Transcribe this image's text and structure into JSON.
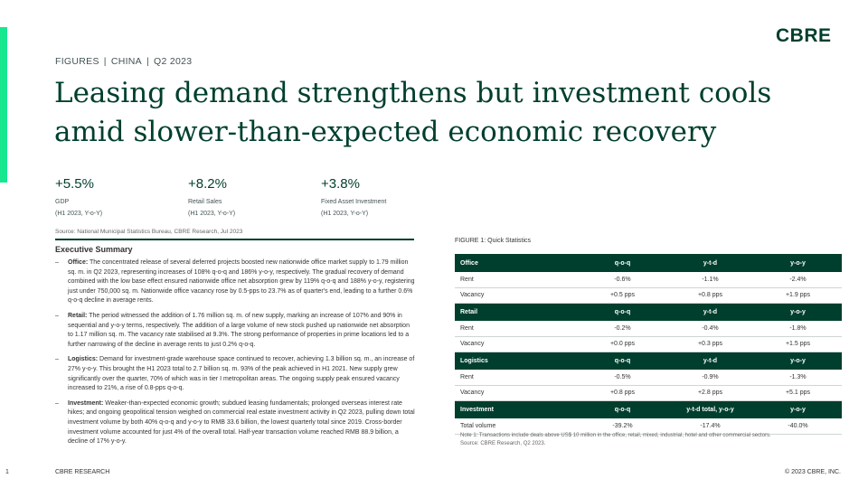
{
  "brand": {
    "logo_text": "CBRE",
    "accent_color": "#17e88f",
    "primary_color": "#003f2d"
  },
  "breadcrumb": [
    "FIGURES",
    "CHINA",
    "Q2 2023"
  ],
  "headline": {
    "line1": "Leasing demand strengthens but investment cools",
    "line2": "amid slower-than-expected economic recovery"
  },
  "kpis": [
    {
      "value": "+5.5%",
      "label": "GDP",
      "sub": "(H1 2023, Y-o-Y)"
    },
    {
      "value": "+8.2%",
      "label": "Retail Sales",
      "sub": "(H1 2023, Y-o-Y)"
    },
    {
      "value": "+3.8%",
      "label": "Fixed Asset Investment",
      "sub": "(H1 2023, Y-o-Y)"
    }
  ],
  "source_top": "Source: National Municipal Statistics Bureau, CBRE Research, Jul 2023",
  "executive_summary": {
    "title": "Executive Summary",
    "bullets": [
      {
        "head": "Office:",
        "text": "The concentrated release of several deferred projects boosted new nationwide office market supply to 1.79 million sq. m. in Q2 2023, representing increases of 108% q-o-q and 186% y-o-y, respectively. The gradual recovery of demand combined with the low base effect ensured nationwide office net absorption grew by 119% q-o-q and 188% y-o-y, registering just under 750,000 sq. m. Nationwide office vacancy rose by 0.5-pps to 23.7% as of quarter's end, leading to a further 0.6% q-o-q decline in average rents."
      },
      {
        "head": "Retail:",
        "text": "The period witnessed the addition of 1.76 million sq. m. of new supply, marking an increase of 107% and 90% in sequential and y-o-y terms, respectively. The addition of a large volume of new stock pushed up nationwide net absorption to 1.17 million sq. m. The vacancy rate stabilised at 9.3%. The strong performance of properties in prime locations led to a further narrowing of the decline in average rents to just 0.2% q-o-q."
      },
      {
        "head": "Logistics:",
        "text": "Demand for investment-grade warehouse space continued to recover, achieving 1.3 billion sq. m., an increase of 27% y-o-y. This brought the H1 2023 total to 2.7 billion sq. m. 93% of the peak achieved in H1 2021. New supply grew significantly over the quarter, 70% of which was in tier I metropolitan areas. The ongoing supply peak ensured vacancy increased to 21%, a rise of 0.8-pps q-o-q."
      },
      {
        "head": "Investment:",
        "text": "Weaker-than-expected economic growth; subdued leasing fundamentals; prolonged overseas interest rate hikes; and ongoing geopolitical tension weighed on commercial real estate investment activity in Q2 2023, pulling down total investment volume by both 40% q-o-q and y-o-y to RMB 33.6 billion, the lowest quarterly total since 2019. Cross-border investment volume accounted for just 4% of the overall total. Half-year transaction volume reached RMB 88.9 billion, a decline of 17% y-o-y."
      }
    ]
  },
  "figure": {
    "title": "FIGURE 1:  Quick Statistics",
    "sections": [
      {
        "name": "Office",
        "cols": [
          "q-o-q",
          "y-t-d",
          "y-o-y"
        ],
        "rows": [
          {
            "label": "Rent",
            "values": [
              "-0.6%",
              "-1.1%",
              "-2.4%"
            ]
          },
          {
            "label": "Vacancy",
            "values": [
              "+0.5 pps",
              "+0.8 pps",
              "+1.9 pps"
            ]
          }
        ]
      },
      {
        "name": "Retail",
        "cols": [
          "q-o-q",
          "y-t-d",
          "y-o-y"
        ],
        "rows": [
          {
            "label": "Rent",
            "values": [
              "-0.2%",
              "-0.4%",
              "-1.8%"
            ]
          },
          {
            "label": "Vacancy",
            "values": [
              "+0.0 pps",
              "+0.3 pps",
              "+1.5 pps"
            ]
          }
        ]
      },
      {
        "name": "Logistics",
        "cols": [
          "q-o-q",
          "y-t-d",
          "y-o-y"
        ],
        "rows": [
          {
            "label": "Rent",
            "values": [
              "-0.5%",
              "-0.9%",
              "-1.3%"
            ]
          },
          {
            "label": "Vacancy",
            "values": [
              "+0.8 pps",
              "+2.8 pps",
              "+5.1 pps"
            ]
          }
        ]
      },
      {
        "name": "Investment",
        "cols": [
          "q-o-q",
          "y-t-d total, y-o-y",
          "y-o-y"
        ],
        "rows": [
          {
            "label": "Total volume",
            "values": [
              "-39.2%",
              "-17.4%",
              "-40.0%"
            ]
          }
        ]
      }
    ],
    "note": "Note 1: Transactions include deals above US$ 10 million in the office, retail, mixed, industrial, hotel and other commercial sectors.",
    "source": "Source: CBRE Research, Q2 2023."
  },
  "footer": {
    "page": "1",
    "left": "CBRE RESEARCH",
    "right": "© 2023 CBRE, INC."
  }
}
